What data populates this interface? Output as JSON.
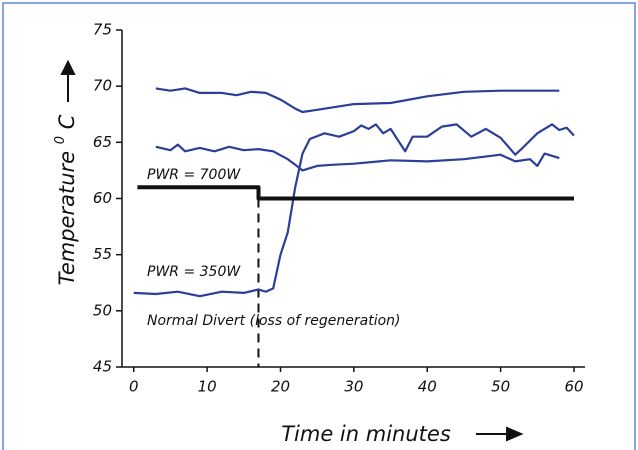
{
  "chart_data": {
    "type": "line",
    "ylabel": "Temperature",
    "ylabel_sup": "0",
    "ylabel_unit": "C",
    "xlabel": "Time in minutes",
    "annotations": [
      "PWR = 700W",
      "PWR = 350W",
      "Normal Divert (loss of regeneration)"
    ],
    "xlim": [
      -1.6,
      61.5
    ],
    "ylim": [
      45,
      75
    ],
    "xticks": [
      0,
      10,
      20,
      30,
      40,
      50,
      60
    ],
    "yticks": [
      45,
      50,
      55,
      60,
      65,
      70,
      75
    ],
    "vline_x": 17,
    "series": [
      {
        "color": "#2b3f98",
        "x": [
          3,
          5,
          7,
          9,
          12,
          14,
          16,
          18,
          20,
          22,
          23,
          25,
          30,
          35,
          40,
          45,
          50,
          55,
          58
        ],
        "values": [
          69.8,
          69.6,
          69.8,
          69.4,
          69.4,
          69.2,
          69.5,
          69.4,
          68.8,
          68.0,
          67.7,
          67.9,
          68.4,
          68.5,
          69.1,
          69.5,
          69.6,
          69.6,
          69.6
        ]
      },
      {
        "color": "#2b3f98",
        "x": [
          3,
          5,
          6,
          7,
          9,
          11,
          13,
          15,
          17,
          19,
          21,
          22,
          23,
          25,
          27,
          30,
          35,
          40,
          45,
          50,
          52,
          54,
          55,
          56,
          58
        ],
        "values": [
          64.6,
          64.3,
          64.8,
          64.2,
          64.5,
          64.2,
          64.6,
          64.3,
          64.4,
          64.2,
          63.5,
          63.0,
          62.5,
          62.9,
          63.0,
          63.1,
          63.4,
          63.3,
          63.5,
          63.9,
          63.3,
          63.5,
          62.9,
          64.0,
          63.6
        ]
      },
      {
        "color": "#2b3f98",
        "x": [
          0,
          3,
          6,
          9,
          12,
          15,
          17,
          18,
          19,
          20,
          21,
          22,
          23,
          24,
          26,
          28,
          30,
          31,
          32,
          33,
          34,
          35,
          37,
          38,
          40,
          42,
          44,
          46,
          48,
          50,
          52,
          53,
          55,
          57,
          58,
          59,
          60
        ],
        "values": [
          51.6,
          51.5,
          51.7,
          51.3,
          51.7,
          51.6,
          51.9,
          51.7,
          52.0,
          55,
          57,
          61,
          64,
          65.3,
          65.8,
          65.5,
          66.0,
          66.5,
          66.2,
          66.6,
          65.8,
          66.2,
          64.2,
          65.5,
          65.5,
          66.4,
          66.6,
          65.5,
          66.2,
          65.4,
          63.9,
          64.5,
          65.8,
          66.6,
          66.1,
          66.3,
          65.6
        ]
      },
      {
        "color": "#111111",
        "x": [
          0.5,
          17,
          17,
          60
        ],
        "values": [
          61,
          61,
          60,
          60
        ]
      }
    ]
  }
}
